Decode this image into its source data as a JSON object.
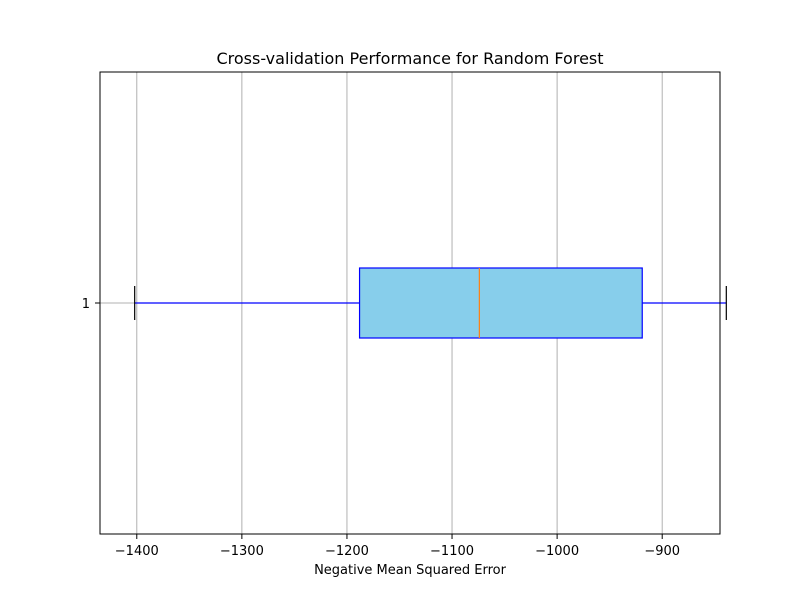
{
  "chart_data": {
    "type": "boxplot",
    "title": "Cross-validation Performance for Random Forest",
    "xlabel": "Negative Mean Squared Error",
    "ylabel": "",
    "orientation": "horizontal",
    "xlim": [
      -1435,
      -845
    ],
    "xticks": [
      -1400,
      -1300,
      -1200,
      -1100,
      -1000,
      -900
    ],
    "grid": "vertical",
    "categories": [
      "1"
    ],
    "box": {
      "whisker_low": -1402,
      "q1": -1188,
      "median": -1074,
      "q3": -919,
      "whisker_high": -839
    },
    "colors": {
      "box_fill": "#87ceeb",
      "box_edge": "#0000ff",
      "whisker": "#0000ff",
      "cap": "#000000",
      "median": "#ff7f0e",
      "grid": "#b0b0b0"
    }
  }
}
